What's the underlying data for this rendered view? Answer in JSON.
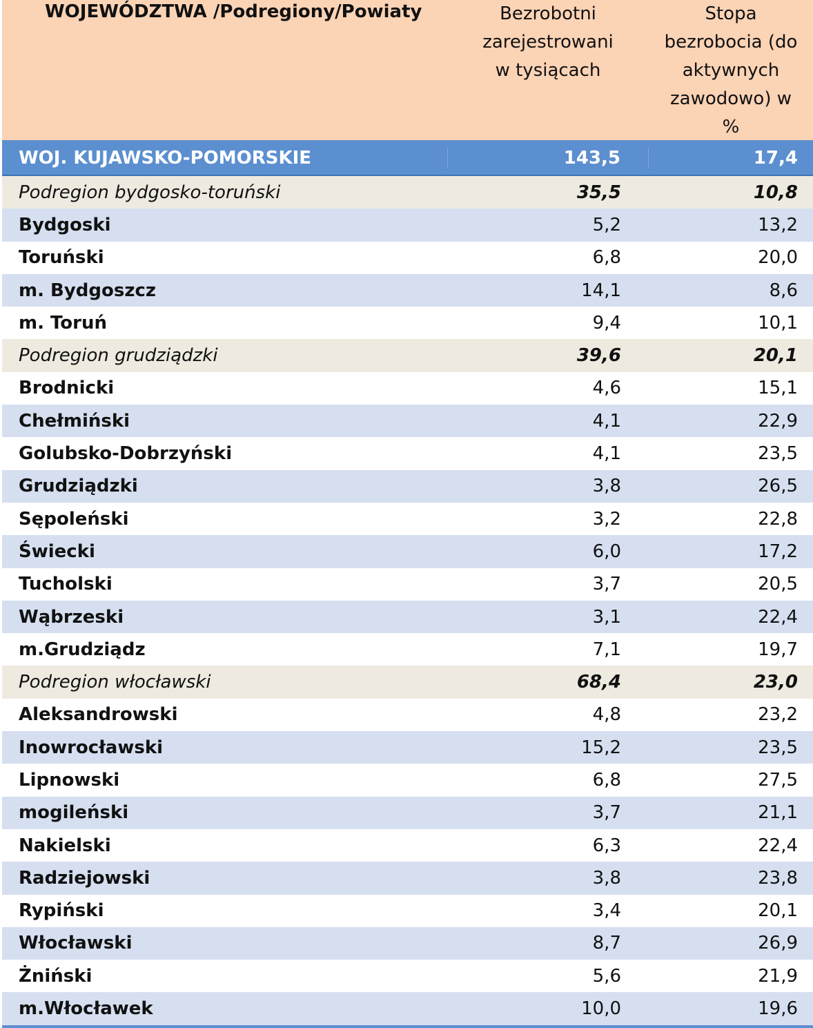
{
  "header": {
    "col1": "WOJEWÓDZTWA /Podregiony/Powiaty",
    "col2_lines": [
      "Bezrobotni",
      "zarejestrowani",
      "w tysiącach"
    ],
    "col3_lines": [
      "Stopa",
      "bezrobocia  (do",
      "aktywnych",
      "zawodowo) w",
      "%"
    ]
  },
  "rows": [
    {
      "name": "WOJ. KUJAWSKO-POMORSKIE",
      "unemployed": "143,5",
      "rate": "17,4",
      "kind": "voiv"
    },
    {
      "name": "Podregion bydgosko-toruński",
      "unemployed": "35,5",
      "rate": "10,8",
      "kind": "region"
    },
    {
      "name": "Bydgoski",
      "unemployed": "5,2",
      "rate": "13,2",
      "kind": "blue"
    },
    {
      "name": "Toruński",
      "unemployed": "6,8",
      "rate": "20,0",
      "kind": "white"
    },
    {
      "name": "m. Bydgoszcz",
      "unemployed": "14,1",
      "rate": "8,6",
      "kind": "blue"
    },
    {
      "name": "m. Toruń",
      "unemployed": "9,4",
      "rate": "10,1",
      "kind": "white"
    },
    {
      "name": "Podregion grudziądzki",
      "unemployed": "39,6",
      "rate": "20,1",
      "kind": "region"
    },
    {
      "name": "Brodnicki",
      "unemployed": "4,6",
      "rate": "15,1",
      "kind": "white"
    },
    {
      "name": "Chełmiński",
      "unemployed": "4,1",
      "rate": "22,9",
      "kind": "blue"
    },
    {
      "name": "Golubsko-Dobrzyński",
      "unemployed": "4,1",
      "rate": "23,5",
      "kind": "white"
    },
    {
      "name": "Grudziądzki",
      "unemployed": "3,8",
      "rate": "26,5",
      "kind": "blue"
    },
    {
      "name": "Sępoleński",
      "unemployed": "3,2",
      "rate": "22,8",
      "kind": "white"
    },
    {
      "name": "Świecki",
      "unemployed": "6,0",
      "rate": "17,2",
      "kind": "blue"
    },
    {
      "name": "Tucholski",
      "unemployed": "3,7",
      "rate": "20,5",
      "kind": "white"
    },
    {
      "name": "Wąbrzeski",
      "unemployed": "3,1",
      "rate": "22,4",
      "kind": "blue"
    },
    {
      "name": "m.Grudziądz",
      "unemployed": "7,1",
      "rate": "19,7",
      "kind": "white"
    },
    {
      "name": "Podregion włocławski",
      "unemployed": "68,4",
      "rate": "23,0",
      "kind": "region"
    },
    {
      "name": "Aleksandrowski",
      "unemployed": "4,8",
      "rate": "23,2",
      "kind": "white"
    },
    {
      "name": "Inowrocławski",
      "unemployed": "15,2",
      "rate": "23,5",
      "kind": "blue"
    },
    {
      "name": "Lipnowski",
      "unemployed": "6,8",
      "rate": "27,5",
      "kind": "white"
    },
    {
      "name": "mogileński",
      "unemployed": "3,7",
      "rate": "21,1",
      "kind": "blue"
    },
    {
      "name": "Nakielski",
      "unemployed": "6,3",
      "rate": "22,4",
      "kind": "white"
    },
    {
      "name": "Radziejowski",
      "unemployed": "3,8",
      "rate": "23,8",
      "kind": "blue"
    },
    {
      "name": "Rypiński",
      "unemployed": "3,4",
      "rate": "20,1",
      "kind": "white"
    },
    {
      "name": "Włocławski",
      "unemployed": "8,7",
      "rate": "26,9",
      "kind": "blue"
    },
    {
      "name": "Żniński",
      "unemployed": "5,6",
      "rate": "21,9",
      "kind": "white"
    },
    {
      "name": "m.Włocławek",
      "unemployed": "10,0",
      "rate": "19,6",
      "kind": "blue"
    }
  ]
}
